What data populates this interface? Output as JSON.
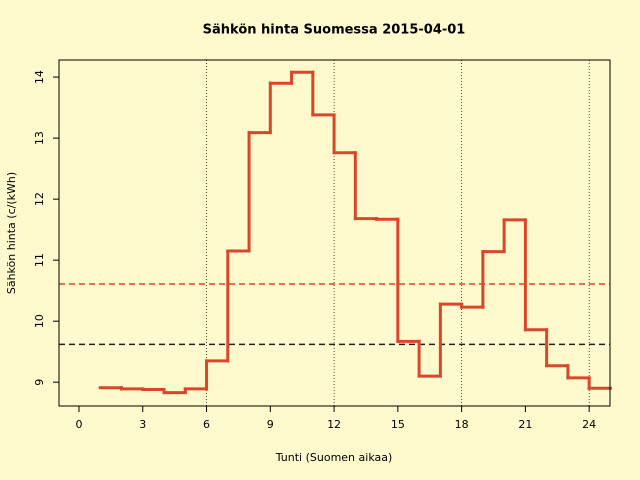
{
  "chart_data": {
    "type": "step",
    "title": "Sähkön hinta Suomessa 2015-04-01",
    "x_label": "Tunti (Suomen aikaa)",
    "y_label": "Sähkön hinta (c/(kWh)",
    "x": [
      1,
      2,
      3,
      4,
      5,
      6,
      7,
      8,
      9,
      10,
      11,
      12,
      13,
      14,
      15,
      16,
      17,
      18,
      19,
      20,
      21,
      22,
      23,
      24
    ],
    "series": [
      {
        "color": "#d9472b",
        "values": [
          8.91,
          8.89,
          8.88,
          8.83,
          8.89,
          9.35,
          11.15,
          13.09,
          13.9,
          14.08,
          13.38,
          12.76,
          11.68,
          11.67,
          9.67,
          9.1,
          10.28,
          10.23,
          11.14,
          11.66,
          9.86,
          9.27,
          9.07,
          8.9
        ]
      }
    ],
    "reference_lines": [
      {
        "value": 10.61,
        "color": "#d9472b"
      },
      {
        "value": 9.62,
        "color": "#222222"
      }
    ],
    "vlines": [
      6,
      12,
      18,
      24
    ],
    "xlim": [
      -0.94,
      24.98
    ],
    "ylim": [
      8.61,
      14.28
    ],
    "xticks": [
      0,
      3,
      6,
      9,
      12,
      15,
      18,
      21,
      24
    ],
    "yticks": [
      9,
      10,
      11,
      12,
      13,
      14
    ],
    "background": "#fffacd"
  }
}
